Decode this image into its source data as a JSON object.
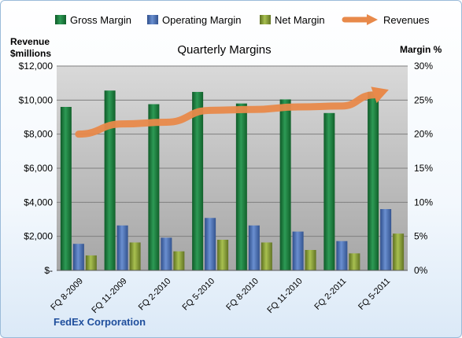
{
  "chart_data": {
    "type": "bar",
    "title": "Quarterly Margins",
    "company": "FedEx Corporation",
    "left_axis_label": [
      "Revenue",
      "$millions"
    ],
    "right_axis_label": "Margin %",
    "y_left_ticks": [
      "$-",
      "$2,000",
      "$4,000",
      "$6,000",
      "$8,000",
      "$10,000",
      "$12,000"
    ],
    "y_right_ticks": [
      "0%",
      "5%",
      "10%",
      "15%",
      "20%",
      "25%",
      "30%"
    ],
    "y_left_lim": [
      0,
      12000
    ],
    "y_right_lim": [
      0,
      30
    ],
    "categories": [
      "FQ 8-2009",
      "FQ 11-2009",
      "FQ 2-2010",
      "FQ 5-2010",
      "FQ 8-2010",
      "FQ 11-2010",
      "FQ 2-2011",
      "FQ 5-2011"
    ],
    "series": [
      {
        "name": "Gross Margin",
        "kind": "bar",
        "axis": "right",
        "color": "#1e7a3c",
        "values": [
          24.0,
          26.4,
          24.4,
          26.2,
          24.5,
          25.1,
          23.1,
          26.2
        ]
      },
      {
        "name": "Operating Margin",
        "kind": "bar",
        "axis": "right",
        "color": "#4a6fb5",
        "values": [
          3.9,
          6.6,
          4.8,
          7.7,
          6.6,
          5.7,
          4.3,
          9.0
        ]
      },
      {
        "name": "Net Margin",
        "kind": "bar",
        "axis": "right",
        "color": "#8ea63a",
        "values": [
          2.2,
          4.1,
          2.8,
          4.5,
          4.1,
          3.0,
          2.5,
          5.4
        ]
      },
      {
        "name": "Revenues",
        "kind": "line",
        "axis": "left",
        "color": "#e8894a",
        "values": [
          8000,
          8600,
          8700,
          9400,
          9450,
          9600,
          9650,
          10550
        ]
      }
    ],
    "grid": true,
    "legend_position": "top"
  }
}
